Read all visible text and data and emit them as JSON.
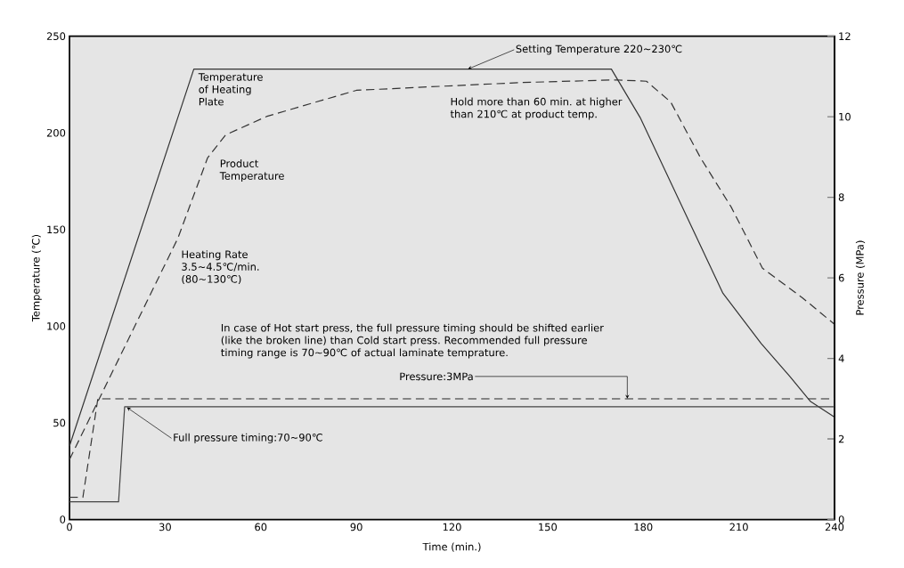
{
  "chart_data": {
    "type": "line",
    "xlabel": "Time (min.)",
    "ylabel": "Temperature (℃)",
    "y2label": "Pressure (MPa)",
    "xlim": [
      0,
      240
    ],
    "xticks": [
      0,
      30,
      60,
      90,
      120,
      150,
      180,
      210,
      240
    ],
    "ylim": [
      0,
      250
    ],
    "yticks": [
      0,
      50,
      100,
      150,
      200,
      250
    ],
    "y2lim": [
      0,
      12
    ],
    "y2ticks": [
      0,
      2,
      4,
      6,
      8,
      10,
      12
    ],
    "legend": false,
    "grid": false,
    "marker": "none",
    "series": [
      {
        "name": "Temperature of Heating Plate",
        "color": "#333333",
        "line_style": "solid",
        "x": [
          0,
          39,
          170,
          179,
          205,
          217,
          226,
          232.5,
          240
        ],
        "values": [
          38,
          233,
          233,
          208,
          117,
          91,
          74,
          61,
          53
        ]
      },
      {
        "name": "Product Temperature",
        "color": "#333333",
        "line_style": "dashed",
        "x": [
          0,
          8.9,
          34,
          43.3,
          49,
          62,
          90,
          141,
          171.5,
          181,
          188.6,
          198,
          207.6,
          217.4,
          230,
          240
        ],
        "values": [
          31,
          61,
          145.5,
          187,
          199,
          208.6,
          222,
          226,
          227.4,
          226.7,
          216,
          187,
          161.6,
          130,
          114.6,
          101
        ]
      },
      {
        "color": "#444444",
        "line_style": "solid",
        "axis": "y2",
        "x": [
          0,
          15.4,
          17.3,
          240
        ],
        "values": [
          0.44,
          0.44,
          2.8,
          2.8
        ]
      },
      {
        "color": "#333333",
        "line_style": "dashed",
        "axis": "y2",
        "x": [
          0,
          4.2,
          8.9,
          240
        ],
        "values": [
          0.55,
          0.55,
          3,
          3
        ]
      }
    ],
    "annotations": [
      {
        "text": "Setting Temperature 220~230℃",
        "x": 125,
        "y": 233
      },
      "Hold more than 60 min. at higher than 210℃ at product temp.",
      "Heating Rate 3.5~4.5℃/min. (80~130℃)",
      "In case of Hot start press, the full pressure timing should be shifted earlier (like the broken line) than Cold start press. Recommended full pressure timing range is 70~90℃ of actual laminate temprature.",
      {
        "text": "Pressure:3MPa",
        "x": 175,
        "y": 62.5
      },
      {
        "text": "Full pressure timing:70~90℃",
        "x": 18,
        "y": 58
      }
    ]
  }
}
